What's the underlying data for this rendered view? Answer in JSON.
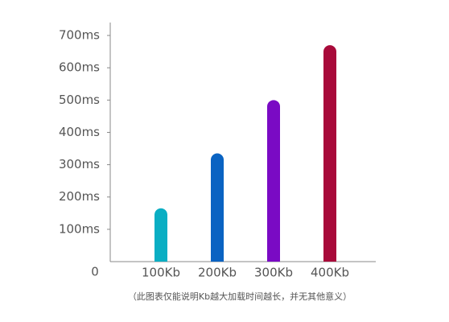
{
  "chart_data": {
    "type": "bar",
    "categories": [
      "100Kb",
      "200Kb",
      "300Kb",
      "400Kb"
    ],
    "values": [
      165,
      335,
      500,
      670
    ],
    "colors": [
      "#0aaec3",
      "#0a63c2",
      "#7a0ac4",
      "#a80a3a"
    ],
    "ylim": [
      0,
      740
    ],
    "yticks": [
      0,
      {
        "value": 100,
        "label": "100ms"
      },
      {
        "value": 200,
        "label": "200ms"
      },
      {
        "value": 300,
        "label": "300ms"
      },
      {
        "value": 400,
        "label": "400ms"
      },
      {
        "value": 500,
        "label": "500ms"
      },
      {
        "value": 600,
        "label": "600ms"
      },
      {
        "value": 700,
        "label": "700ms"
      }
    ],
    "note": "（此图表仅能说明Kb越大加载时间越长，并无其他意义）"
  }
}
